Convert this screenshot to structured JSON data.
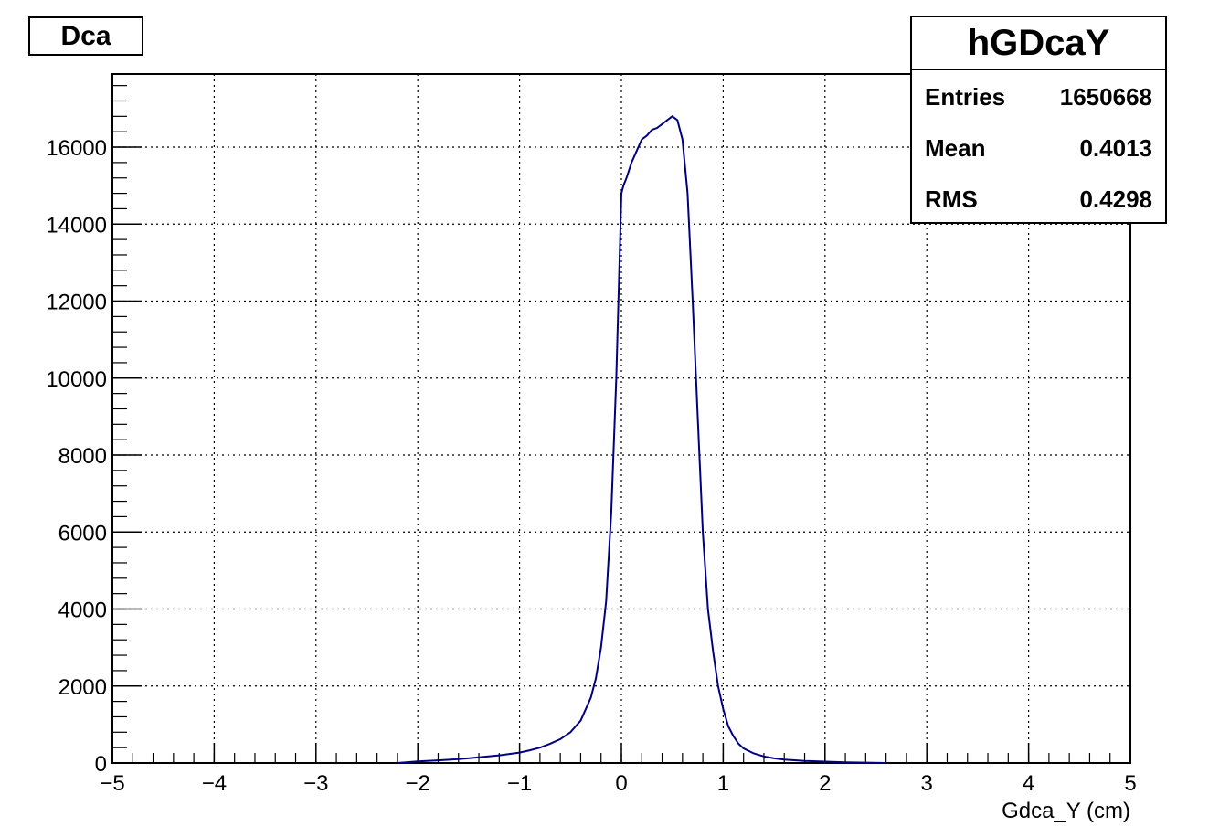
{
  "canvas": {
    "title_label": "Dca"
  },
  "stats": {
    "name": "hGDcaY",
    "rows": [
      {
        "key": "Entries",
        "value": "1650668"
      },
      {
        "key": "Mean",
        "value": "0.4013"
      },
      {
        "key": "RMS",
        "value": "0.4298"
      }
    ]
  },
  "chart_data": {
    "type": "line",
    "title": "Dca",
    "xlabel": "Gdca_Y (cm)",
    "ylabel": "",
    "xlim": [
      -5,
      5
    ],
    "ylim": [
      0,
      17900
    ],
    "xticks": [
      "-5",
      "-4",
      "-3",
      "-2",
      "-1",
      "0",
      "1",
      "2",
      "3",
      "4",
      "5"
    ],
    "yticks": [
      "0",
      "2000",
      "4000",
      "6000",
      "8000",
      "10000",
      "12000",
      "14000",
      "16000"
    ],
    "grid": true,
    "line_color": "#000080",
    "series": [
      {
        "x": [
          -2.2,
          -2.0,
          -1.8,
          -1.6,
          -1.4,
          -1.2,
          -1.0,
          -0.9,
          -0.8,
          -0.7,
          -0.6,
          -0.5,
          -0.4,
          -0.3,
          -0.25,
          -0.2,
          -0.15,
          -0.1,
          -0.05,
          0.0,
          0.02,
          0.05,
          0.1,
          0.15,
          0.2,
          0.25,
          0.3,
          0.35,
          0.4,
          0.45,
          0.5,
          0.55,
          0.6,
          0.65,
          0.7,
          0.75,
          0.8,
          0.85,
          0.9,
          0.95,
          1.0,
          1.05,
          1.1,
          1.15,
          1.2,
          1.3,
          1.4,
          1.5,
          1.6,
          1.8,
          2.0,
          2.2,
          2.4,
          2.6
        ],
        "y": [
          0,
          40,
          70,
          100,
          150,
          200,
          270,
          330,
          400,
          500,
          620,
          800,
          1100,
          1700,
          2200,
          3000,
          4200,
          6500,
          10000,
          14800,
          15000,
          15200,
          15600,
          15900,
          16200,
          16300,
          16450,
          16500,
          16600,
          16700,
          16800,
          16700,
          16200,
          14800,
          12000,
          9000,
          6000,
          4000,
          2900,
          2000,
          1400,
          950,
          700,
          500,
          380,
          250,
          170,
          120,
          90,
          55,
          35,
          20,
          10,
          0
        ]
      }
    ]
  }
}
